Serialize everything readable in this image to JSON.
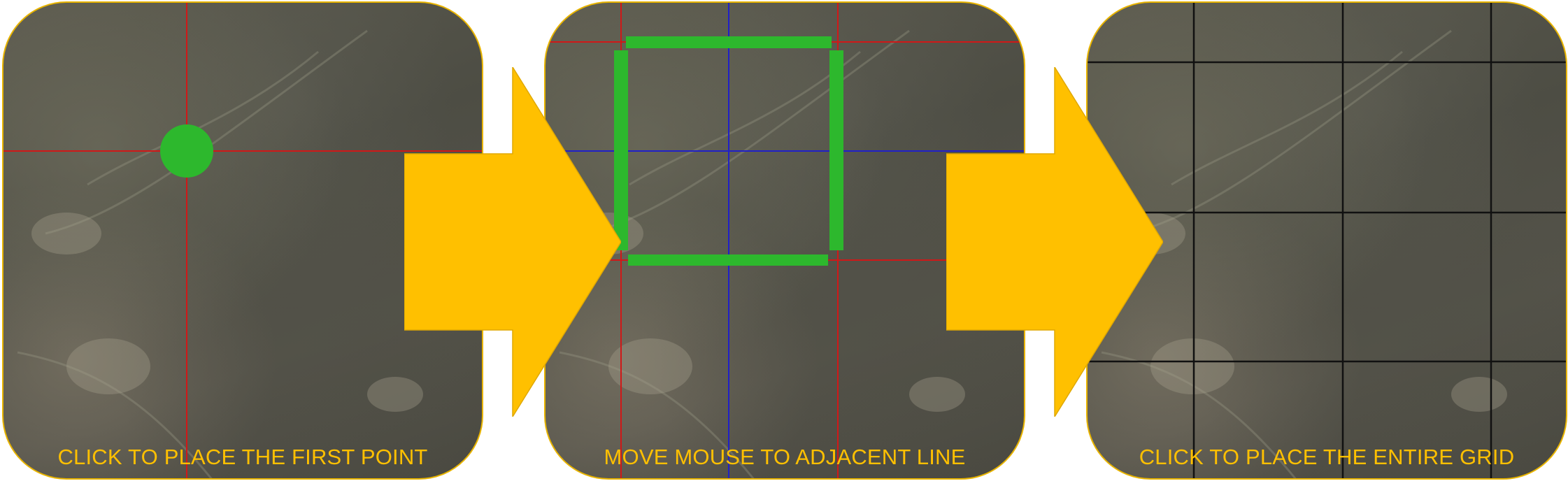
{
  "panels": [
    {
      "caption": "CLICK TO PLACE THE FIRST POINT"
    },
    {
      "caption": "MOVE MOUSE TO ADJACENT LINE"
    },
    {
      "caption": "CLICK TO PLACE THE ENTIRE GRID"
    }
  ],
  "colors": {
    "caption": "#ffc000",
    "arrow": "#ffc000",
    "panel_border": "#e8b400",
    "marker": "#2db82d",
    "crosshair_red": "#d01818",
    "crosshair_blue": "#2020c8",
    "grid_black": "#111111"
  },
  "icons": {
    "arrow": "right-arrow-icon",
    "marker": "placement-point-icon"
  }
}
